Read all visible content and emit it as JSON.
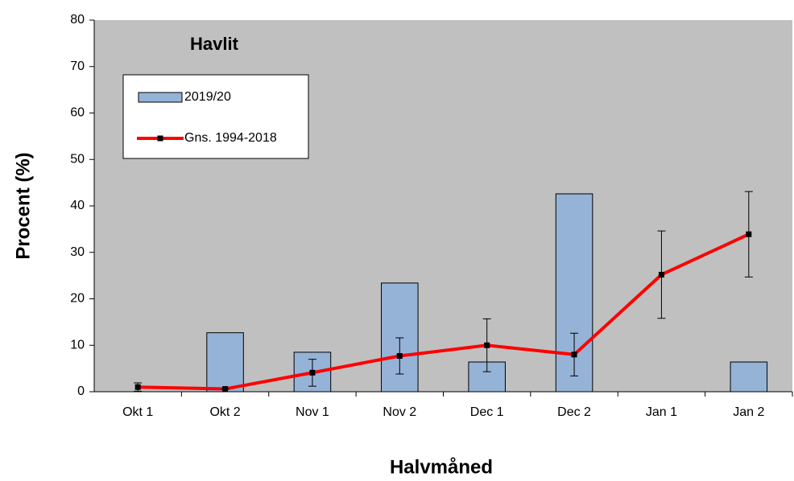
{
  "chart_data": {
    "type": "bar",
    "title": "Havlit",
    "x_label": "Halvmåned",
    "y_label": "Procent (%)",
    "categories": [
      "Okt 1",
      "Okt 2",
      "Nov 1",
      "Nov 2",
      "Dec 1",
      "Dec 2",
      "Jan 1",
      "Jan 2"
    ],
    "series": [
      {
        "name": "2019/20",
        "type": "bar",
        "color": "#95b3d7",
        "values": [
          0,
          12.7,
          8.5,
          23.4,
          6.4,
          42.6,
          0,
          6.4
        ]
      },
      {
        "name": "Gns. 1994-2018",
        "type": "line",
        "color": "#ff0000",
        "values": [
          1.0,
          0.6,
          4.1,
          7.7,
          10.0,
          8.0,
          25.2,
          33.9
        ],
        "errors": [
          0.9,
          0,
          2.9,
          3.9,
          5.7,
          4.6,
          9.4,
          9.2
        ]
      }
    ],
    "ylim": [
      0,
      80
    ],
    "yticks": [
      0,
      10,
      20,
      30,
      40,
      50,
      60,
      70,
      80
    ],
    "background": "#c0c0c0"
  }
}
